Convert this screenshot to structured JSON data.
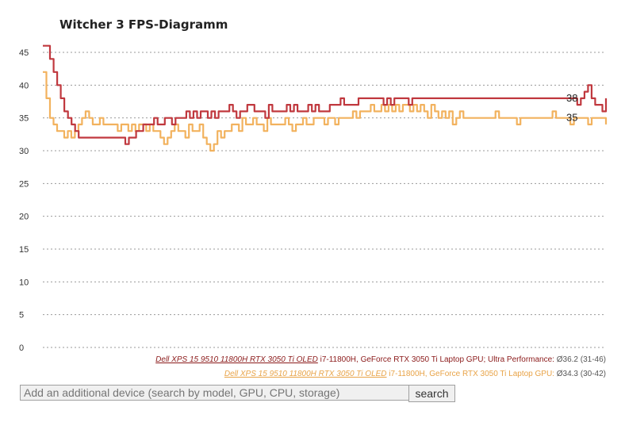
{
  "chart_data": {
    "type": "line",
    "title": "Witcher 3 FPS-Diagramm",
    "ylim": [
      0,
      45
    ],
    "yticks": [
      0,
      5,
      10,
      15,
      20,
      25,
      30,
      35,
      40,
      45
    ],
    "grid": true,
    "series": [
      {
        "name": "Dell XPS 15 9510 11800H RTX 3050 Ti OLED",
        "color": "#c0383e",
        "end_label": "38",
        "values": [
          46,
          46,
          44,
          42,
          40,
          38,
          36,
          35,
          34,
          33,
          32,
          32,
          32,
          32,
          32,
          32,
          32,
          32,
          32,
          32,
          32,
          32,
          32,
          31,
          32,
          32,
          33,
          33,
          34,
          34,
          34,
          35,
          34,
          34,
          35,
          35,
          34,
          35,
          35,
          35,
          36,
          35,
          36,
          35,
          36,
          36,
          35,
          36,
          35,
          36,
          36,
          36,
          37,
          36,
          35,
          36,
          36,
          37,
          37,
          36,
          36,
          36,
          35,
          37,
          36,
          36,
          36,
          36,
          37,
          36,
          37,
          36,
          36,
          36,
          37,
          36,
          37,
          36,
          36,
          36,
          37,
          37,
          37,
          38,
          37,
          37,
          37,
          37,
          38,
          38,
          38,
          38,
          38,
          38,
          38,
          37,
          38,
          37,
          38,
          38,
          38,
          38,
          37,
          38,
          38,
          38,
          38,
          38,
          38,
          38,
          38,
          38,
          38,
          38,
          38,
          38,
          38,
          38,
          38,
          38,
          38,
          38,
          38,
          38,
          38,
          38,
          38,
          38,
          38,
          38,
          38,
          38,
          38,
          38,
          38,
          38,
          38,
          38,
          38,
          38,
          38,
          38,
          38,
          38,
          38,
          38,
          38,
          38,
          38,
          37,
          38,
          39,
          40,
          38,
          37,
          37,
          36,
          38
        ]
      },
      {
        "name": "Dell XPS 15 9510 11800H RTX 3050 Ti OLED",
        "color": "#f2b25e",
        "end_label": "35",
        "values": [
          42,
          38,
          35,
          34,
          33,
          33,
          32,
          33,
          32,
          33,
          34,
          35,
          36,
          35,
          34,
          34,
          35,
          34,
          34,
          34,
          34,
          33,
          34,
          34,
          33,
          34,
          33,
          34,
          34,
          33,
          34,
          33,
          33,
          32,
          31,
          32,
          33,
          34,
          33,
          33,
          32,
          34,
          33,
          33,
          34,
          32,
          31,
          30,
          31,
          33,
          32,
          33,
          33,
          34,
          34,
          33,
          35,
          34,
          34,
          35,
          34,
          34,
          33,
          35,
          34,
          34,
          34,
          34,
          35,
          34,
          33,
          34,
          34,
          35,
          34,
          34,
          35,
          35,
          35,
          34,
          35,
          35,
          34,
          35,
          35,
          35,
          35,
          36,
          35,
          36,
          36,
          36,
          37,
          36,
          36,
          37,
          36,
          37,
          36,
          37,
          36,
          37,
          37,
          36,
          37,
          36,
          37,
          36,
          35,
          37,
          36,
          35,
          36,
          35,
          36,
          34,
          35,
          36,
          35,
          35,
          35,
          35,
          35,
          35,
          35,
          35,
          35,
          36,
          35,
          35,
          35,
          35,
          35,
          34,
          35,
          35,
          35,
          35,
          35,
          35,
          35,
          35,
          35,
          36,
          35,
          35,
          35,
          35,
          34,
          35,
          35,
          35,
          35,
          34,
          35,
          35,
          35,
          35,
          34
        ]
      }
    ]
  },
  "legend": [
    {
      "device": "Dell XPS 15 9510 11800H RTX 3050 Ti OLED",
      "desc": " i7-11800H, GeForce RTX 3050 Ti Laptop GPU; Ultra Performance: ",
      "avg": "Ø36.2",
      "range": " (31-46)"
    },
    {
      "device": "Dell XPS 15 9510 11800H RTX 3050 Ti OLED",
      "desc": " i7-11800H, GeForce RTX 3050 Ti Laptop GPU: ",
      "avg": "Ø34.3",
      "range": " (30-42)"
    }
  ],
  "search": {
    "placeholder": "Add an additional device (search by model, GPU, CPU, storage)",
    "button_label": "search"
  }
}
